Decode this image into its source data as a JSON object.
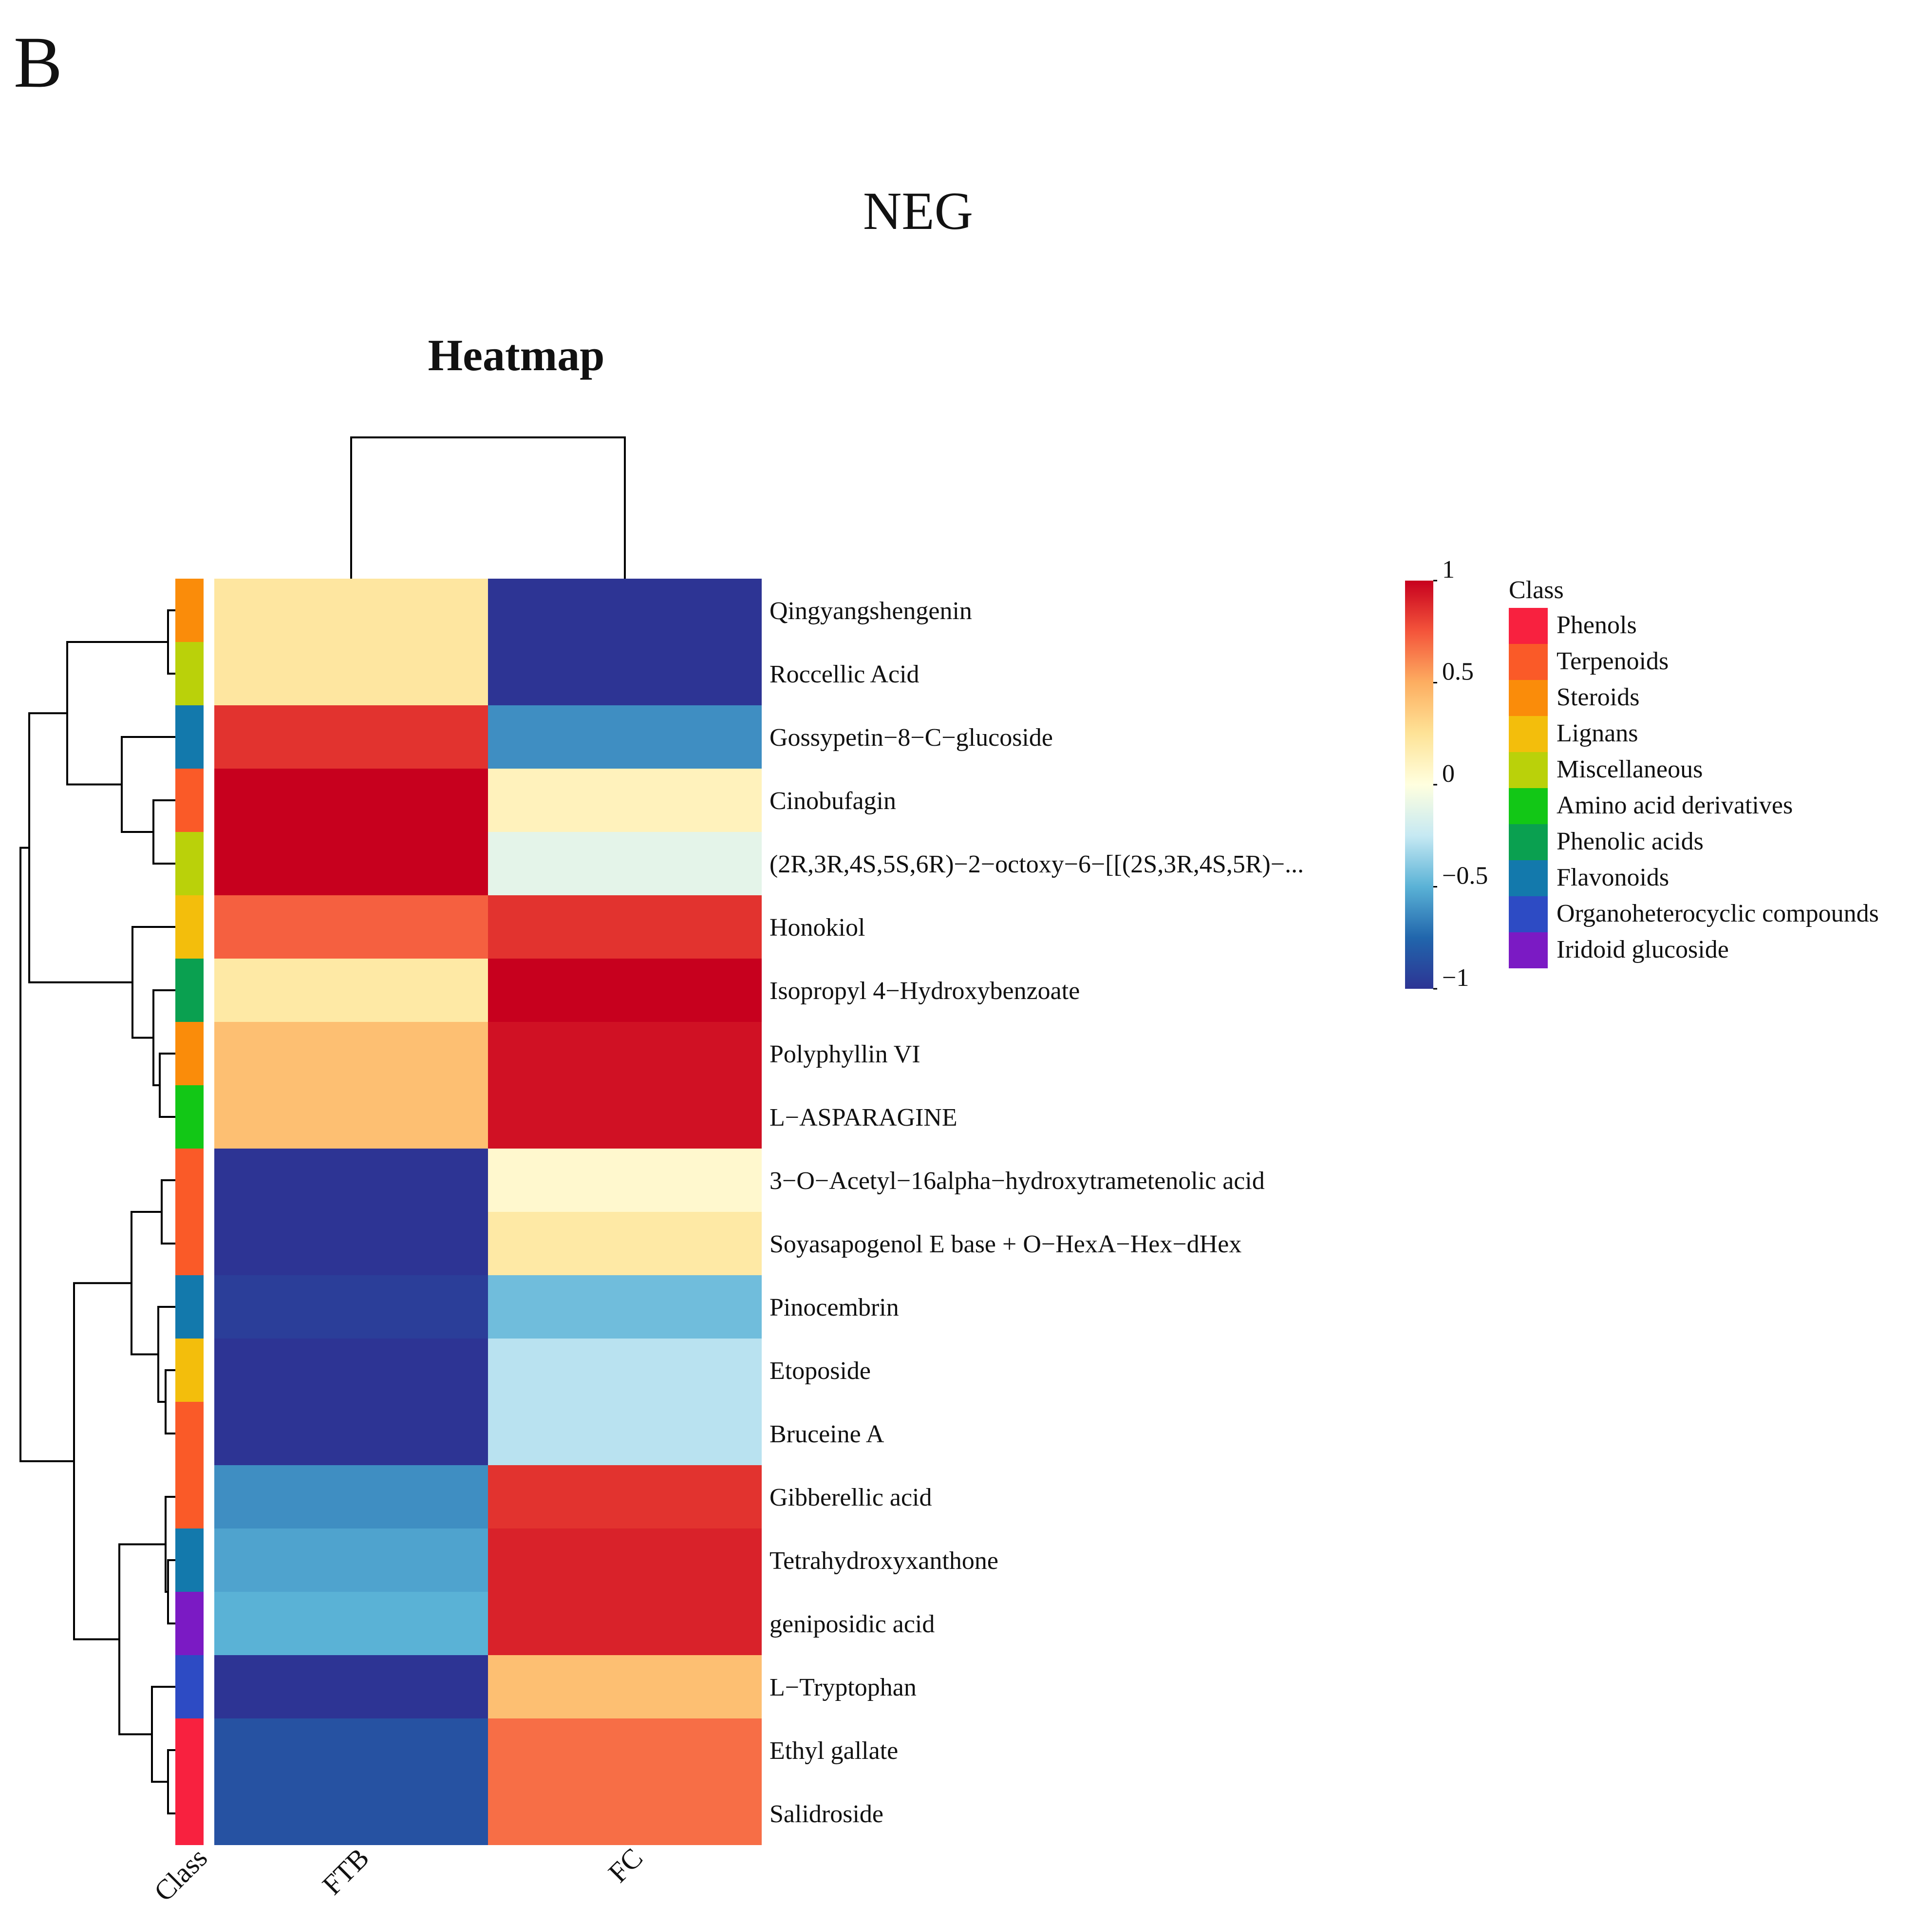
{
  "panel_label": "B",
  "figure_title": "NEG",
  "chart_data": {
    "type": "heatmap",
    "title": "Heatmap",
    "columns": [
      "FTB",
      "FC"
    ],
    "annotation_column_label": "Class",
    "rows": [
      {
        "label": "Qingyangshengenin",
        "class": "Steroids",
        "values": [
          0.22,
          -1.0
        ]
      },
      {
        "label": "Roccellic Acid",
        "class": "Miscellaneous",
        "values": [
          0.22,
          -1.0
        ]
      },
      {
        "label": "Gossypetin−8−C−glucoside",
        "class": "Flavonoids",
        "values": [
          0.85,
          -0.62
        ]
      },
      {
        "label": "Cinobufagin",
        "class": "Terpenoids",
        "values": [
          1.0,
          0.12
        ]
      },
      {
        "label": "(2R,3R,4S,5S,6R)−2−octoxy−6−[[(2S,3R,4S,5R)−...",
        "class": "Miscellaneous",
        "values": [
          1.0,
          -0.12
        ]
      },
      {
        "label": "Honokiol",
        "class": "Lignans",
        "values": [
          0.72,
          0.85
        ]
      },
      {
        "label": "Isopropyl 4−Hydroxybenzoate",
        "class": "Phenolic acids",
        "values": [
          0.2,
          1.0
        ]
      },
      {
        "label": "Polyphyllin VI",
        "class": "Steroids",
        "values": [
          0.42,
          0.95
        ]
      },
      {
        "label": "L−ASPARAGINE",
        "class": "Amino acid derivatives",
        "values": [
          0.42,
          0.95
        ]
      },
      {
        "label": "3−O−Acetyl−16alpha−hydroxytrametenolic acid",
        "class": "Terpenoids",
        "values": [
          -1.0,
          0.06
        ]
      },
      {
        "label": "Soyasapogenol E base + O−HexA−Hex−dHex",
        "class": "Terpenoids",
        "values": [
          -1.0,
          0.2
        ]
      },
      {
        "label": "Pinocembrin",
        "class": "Flavonoids",
        "values": [
          -0.95,
          -0.45
        ]
      },
      {
        "label": "Etoposide",
        "class": "Lignans",
        "values": [
          -1.0,
          -0.28
        ]
      },
      {
        "label": "Bruceine A",
        "class": "Terpenoids",
        "values": [
          -1.0,
          -0.28
        ]
      },
      {
        "label": "Gibberellic acid",
        "class": "Terpenoids",
        "values": [
          -0.62,
          0.85
        ]
      },
      {
        "label": "Tetrahydroxyxanthone",
        "class": "Flavonoids",
        "values": [
          -0.55,
          0.9
        ]
      },
      {
        "label": "geniposidic acid",
        "class": "Iridoid glucoside",
        "values": [
          -0.5,
          0.9
        ]
      },
      {
        "label": "L−Tryptophan",
        "class": "Organoheterocyclic compounds",
        "values": [
          -1.0,
          0.42
        ]
      },
      {
        "label": "Ethyl gallate",
        "class": "Phenols",
        "values": [
          -0.85,
          0.68
        ]
      },
      {
        "label": "Salidroside",
        "class": "Phenols",
        "values": [
          -0.85,
          0.68
        ]
      }
    ],
    "color_scale": {
      "min": -1,
      "max": 1,
      "ticks": [
        1,
        0.5,
        0,
        -0.5,
        -1
      ],
      "tick_labels": [
        "1",
        "0.5",
        "0",
        "−0.5",
        "−1"
      ],
      "stops": [
        {
          "v": -1.0,
          "c": "#2D3494"
        },
        {
          "v": -0.75,
          "c": "#2166AC"
        },
        {
          "v": -0.5,
          "c": "#5AB2D6"
        },
        {
          "v": -0.25,
          "c": "#C6E9F3"
        },
        {
          "v": 0.0,
          "c": "#FFFFDF"
        },
        {
          "v": 0.25,
          "c": "#FEE397"
        },
        {
          "v": 0.5,
          "c": "#FDAE61"
        },
        {
          "v": 0.75,
          "c": "#F4553B"
        },
        {
          "v": 1.0,
          "c": "#C7001E"
        }
      ]
    },
    "class_legend": {
      "title": "Class",
      "items": [
        {
          "name": "Phenols",
          "color": "#F8213F"
        },
        {
          "name": "Terpenoids",
          "color": "#FA5A28"
        },
        {
          "name": "Steroids",
          "color": "#FA8C0A"
        },
        {
          "name": "Lignans",
          "color": "#F3BE0C"
        },
        {
          "name": "Miscellaneous",
          "color": "#BAD10A"
        },
        {
          "name": "Amino acid derivatives",
          "color": "#12C716"
        },
        {
          "name": "Phenolic acids",
          "color": "#0AA050"
        },
        {
          "name": "Flavonoids",
          "color": "#1379AC"
        },
        {
          "name": "Organoheterocyclic compounds",
          "color": "#2D4BC4"
        },
        {
          "name": "Iridoid glucoside",
          "color": "#7B1AC4"
        }
      ]
    },
    "row_dendrogram_order": "Qingyangshengenin, Roccellic Acid, Gossypetin-8-C-glucoside, Cinobufagin, ... , Salidroside",
    "column_dendrogram": "FTB, FC"
  }
}
